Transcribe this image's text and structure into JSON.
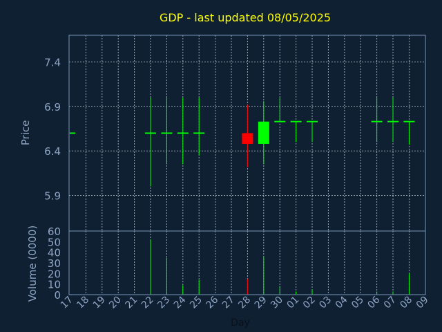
{
  "colors": {
    "background": "#0f2033",
    "frame": "#7a96b8",
    "grid": "#c8d2dc",
    "title": "#ffff00",
    "axis_text": "#8fa6c4",
    "up": "#00ff00",
    "down": "#ff0000"
  },
  "chart_data": {
    "type": "candlestick",
    "title": "GDP - last updated 08/05/2025",
    "xlabel": "Day",
    "ylabel_price": "Price",
    "ylabel_volume": "Volume (0000)",
    "price_ylim": [
      5.5,
      7.7
    ],
    "price_ticks": [
      "5.9",
      "6.4",
      "6.9",
      "7.4"
    ],
    "price_tick_values": [
      5.9,
      6.4,
      6.9,
      7.4
    ],
    "volume_ylim": [
      0,
      60
    ],
    "volume_ticks": [
      "0",
      "10",
      "20",
      "30",
      "40",
      "50",
      "60"
    ],
    "volume_tick_values": [
      0,
      10,
      20,
      30,
      40,
      50,
      60
    ],
    "x_labels": [
      "17",
      "18",
      "19",
      "20",
      "21",
      "22",
      "23",
      "24",
      "25",
      "26",
      "27",
      "28",
      "29",
      "30",
      "01",
      "02",
      "03",
      "04",
      "05",
      "06",
      "07",
      "08",
      "09"
    ],
    "grid": true,
    "candles": [
      {
        "x": "17",
        "open": 6.6,
        "close": 6.6,
        "high": 6.6,
        "low": 6.6,
        "volume": 0
      },
      {
        "x": "22",
        "open": 6.6,
        "close": 6.6,
        "high": 7.0,
        "low": 6.0,
        "volume": 52
      },
      {
        "x": "23",
        "open": 6.6,
        "close": 6.6,
        "high": 7.0,
        "low": 6.25,
        "volume": 35
      },
      {
        "x": "24",
        "open": 6.6,
        "close": 6.6,
        "high": 7.0,
        "low": 6.25,
        "volume": 9
      },
      {
        "x": "25",
        "open": 6.6,
        "close": 6.6,
        "high": 7.0,
        "low": 6.35,
        "volume": 14
      },
      {
        "x": "28",
        "open": 6.6,
        "close": 6.48,
        "high": 6.92,
        "low": 6.22,
        "volume": 15
      },
      {
        "x": "29",
        "open": 6.48,
        "close": 6.73,
        "high": 6.96,
        "low": 6.25,
        "volume": 36
      },
      {
        "x": "30",
        "open": 6.73,
        "close": 6.73,
        "high": 7.0,
        "low": 6.73,
        "volume": 8
      },
      {
        "x": "01",
        "open": 6.73,
        "close": 6.73,
        "high": 6.73,
        "low": 6.5,
        "volume": 3
      },
      {
        "x": "02",
        "open": 6.73,
        "close": 6.73,
        "high": 6.73,
        "low": 6.5,
        "volume": 5
      },
      {
        "x": "06",
        "open": 6.73,
        "close": 6.73,
        "high": 7.0,
        "low": 6.5,
        "volume": 3
      },
      {
        "x": "07",
        "open": 6.73,
        "close": 6.73,
        "high": 7.0,
        "low": 6.5,
        "volume": 3
      },
      {
        "x": "08",
        "open": 6.73,
        "close": 6.73,
        "high": 6.73,
        "low": 6.47,
        "volume": 20
      }
    ]
  }
}
